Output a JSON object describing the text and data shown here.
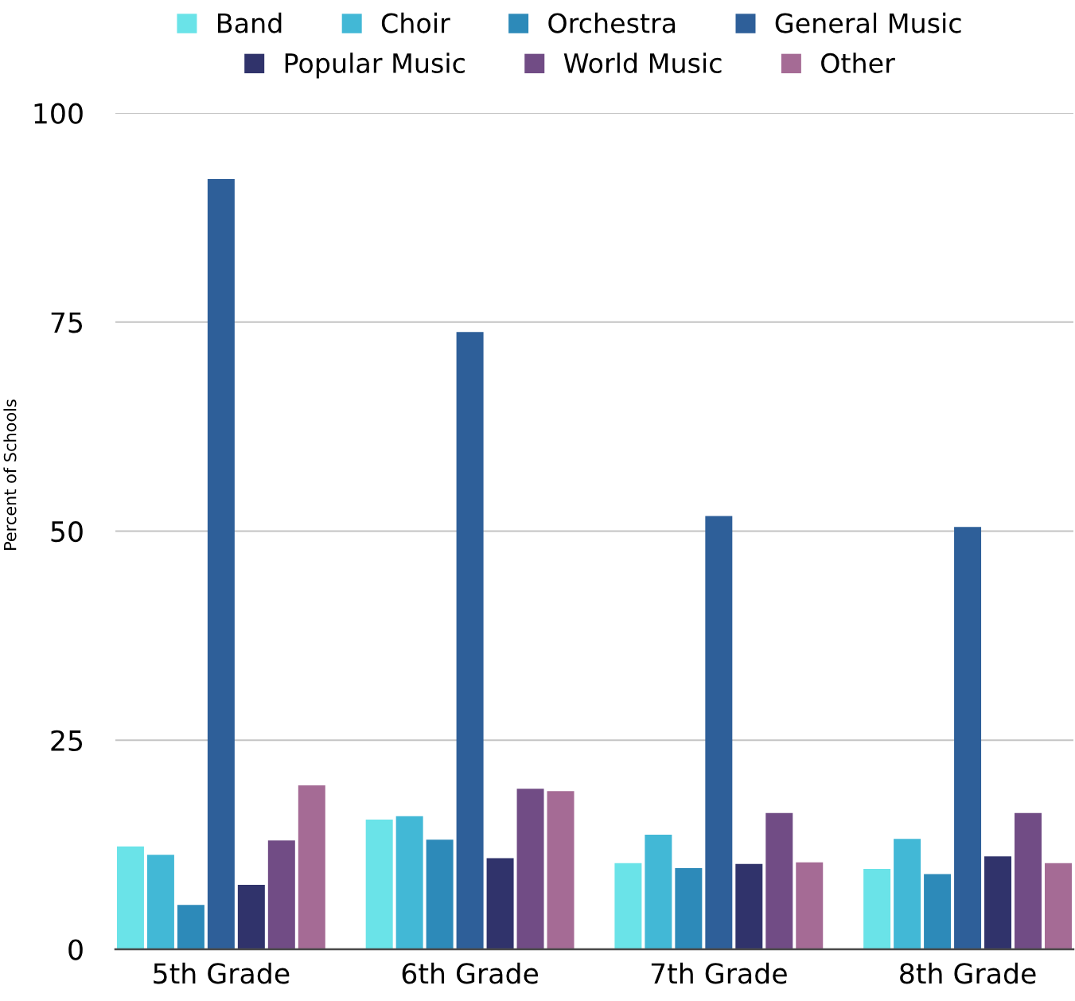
{
  "chart_data": {
    "type": "bar",
    "ylabel": "Percent of Schools",
    "categories": [
      "5th Grade",
      "6th Grade",
      "7th Grade",
      "8th Grade"
    ],
    "series": [
      {
        "name": "Band",
        "color": "#6ae3e8",
        "values": [
          12.3,
          15.5,
          10.3,
          9.6
        ]
      },
      {
        "name": "Choir",
        "color": "#42b8d6",
        "values": [
          11.3,
          15.9,
          13.7,
          13.2
        ]
      },
      {
        "name": "Orchestra",
        "color": "#2d8ab9",
        "values": [
          5.3,
          13.1,
          9.7,
          9.0
        ]
      },
      {
        "name": "General Music",
        "color": "#2e5f99",
        "values": [
          92.1,
          73.8,
          51.8,
          50.5
        ]
      },
      {
        "name": "Popular Music",
        "color": "#30336b",
        "values": [
          7.7,
          10.9,
          10.2,
          11.1
        ]
      },
      {
        "name": "World Music",
        "color": "#714c85",
        "values": [
          13.0,
          19.2,
          16.3,
          16.3
        ]
      },
      {
        "name": "Other",
        "color": "#a56b95",
        "values": [
          19.6,
          18.9,
          10.4,
          10.3
        ]
      }
    ],
    "ylim": [
      0,
      100
    ],
    "yticks": [
      0,
      25,
      50,
      75,
      100
    ],
    "grid": "y",
    "legend": "top"
  }
}
